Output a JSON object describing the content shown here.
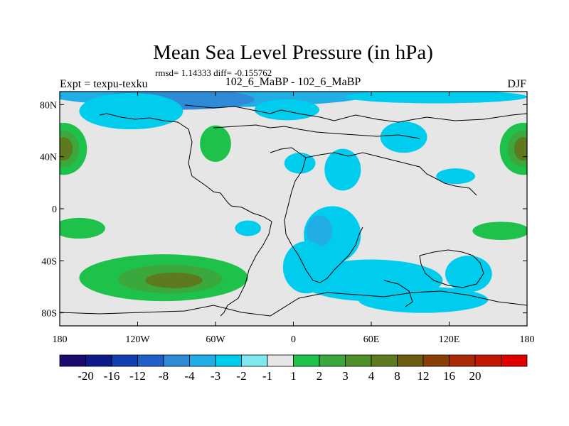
{
  "chart_data": {
    "type": "heatmap",
    "title": "Mean Sea Level Pressure (in hPa)",
    "stats": "rmsd= 1.14333 diff= -0.155762",
    "left_label": "Expt = texpu-texku",
    "center_label": "102_6_MaBP - 102_6_MaBP",
    "right_label": "DJF",
    "x_ticks": [
      {
        "lon": -180,
        "label": "180"
      },
      {
        "lon": -120,
        "label": "120W"
      },
      {
        "lon": -60,
        "label": "60W"
      },
      {
        "lon": 0,
        "label": "0"
      },
      {
        "lon": 60,
        "label": "60E"
      },
      {
        "lon": 120,
        "label": "120E"
      },
      {
        "lon": 180,
        "label": "180"
      }
    ],
    "y_ticks": [
      {
        "lat": 80,
        "label": "80N"
      },
      {
        "lat": 40,
        "label": "40N"
      },
      {
        "lat": 0,
        "label": "0"
      },
      {
        "lat": -40,
        "label": "40S"
      },
      {
        "lat": -80,
        "label": "80S"
      }
    ],
    "xlim": [
      -180,
      180
    ],
    "ylim": [
      -90,
      90
    ],
    "colorbar": {
      "colors": [
        "#1a0a6e",
        "#0d1a8c",
        "#123fb0",
        "#1e5fc8",
        "#2f8ad8",
        "#21aee6",
        "#00ccee",
        "#7fe8ee",
        "#e6e6e6",
        "#1ec24a",
        "#3aa83c",
        "#4f8f2a",
        "#5e7a1e",
        "#6e5a10",
        "#8a3e08",
        "#a82a06",
        "#c41606",
        "#e00000"
      ],
      "labels": [
        "-20",
        "-16",
        "-12",
        "-8",
        "-4",
        "-3",
        "-2",
        "-1",
        "1",
        "2",
        "3",
        "4",
        "8",
        "12",
        "16",
        "20"
      ],
      "background_level": "#e6e6e6"
    },
    "anomaly_regions": [
      {
        "lon": -177,
        "lat": 46,
        "rlon": 18,
        "rlat": 20,
        "color": "#1ec24a"
      },
      {
        "lon": -177,
        "lat": 46,
        "rlon": 12,
        "rlat": 14,
        "color": "#3aa83c"
      },
      {
        "lon": -177,
        "lat": 46,
        "rlon": 7,
        "rlat": 9,
        "color": "#5e7a1e"
      },
      {
        "lon": 177,
        "lat": 46,
        "rlon": 18,
        "rlat": 20,
        "color": "#1ec24a"
      },
      {
        "lon": 177,
        "lat": 46,
        "rlon": 12,
        "rlat": 14,
        "color": "#3aa83c"
      },
      {
        "lon": 177,
        "lat": 46,
        "rlon": 7,
        "rlat": 9,
        "color": "#5e7a1e"
      },
      {
        "lon": -60,
        "lat": 50,
        "rlon": 12,
        "rlat": 14,
        "color": "#1ec24a"
      },
      {
        "lon": -165,
        "lat": -15,
        "rlon": 20,
        "rlat": 8,
        "color": "#1ec24a"
      },
      {
        "lon": 160,
        "lat": -17,
        "rlon": 22,
        "rlat": 7,
        "color": "#1ec24a"
      },
      {
        "lon": -100,
        "lat": -53,
        "rlon": 65,
        "rlat": 18,
        "color": "#1ec24a"
      },
      {
        "lon": -95,
        "lat": -54,
        "rlon": 40,
        "rlat": 11,
        "color": "#3aa83c"
      },
      {
        "lon": -92,
        "lat": -55,
        "rlon": 22,
        "rlat": 6,
        "color": "#5e7a1e"
      },
      {
        "lon": -65,
        "lat": 88,
        "rlon": 125,
        "rlat": 10,
        "color": "#21aee6"
      },
      {
        "lon": -90,
        "lat": 84,
        "rlon": 60,
        "rlat": 8,
        "color": "#2f8ad8"
      },
      {
        "lon": -125,
        "lat": 75,
        "rlon": 40,
        "rlat": 14,
        "color": "#00ccee"
      },
      {
        "lon": -5,
        "lat": 76,
        "rlon": 25,
        "rlat": 8,
        "color": "#00ccee"
      },
      {
        "lon": 110,
        "lat": 86,
        "rlon": 70,
        "rlat": 5,
        "color": "#00ccee"
      },
      {
        "lon": 38,
        "lat": 30,
        "rlon": 14,
        "rlat": 16,
        "color": "#00ccee"
      },
      {
        "lon": 30,
        "lat": -20,
        "rlon": 22,
        "rlat": 22,
        "color": "#00ccee"
      },
      {
        "lon": 20,
        "lat": -17,
        "rlon": 10,
        "rlat": 12,
        "color": "#21aee6"
      },
      {
        "lon": 10,
        "lat": -45,
        "rlon": 18,
        "rlat": 20,
        "color": "#00ccee"
      },
      {
        "lon": 60,
        "lat": -55,
        "rlon": 55,
        "rlat": 16,
        "color": "#00ccee"
      },
      {
        "lon": 100,
        "lat": -70,
        "rlon": 50,
        "rlat": 10,
        "color": "#00ccee"
      },
      {
        "lon": 85,
        "lat": 55,
        "rlon": 18,
        "rlat": 12,
        "color": "#00ccee"
      },
      {
        "lon": 5,
        "lat": 35,
        "rlon": 12,
        "rlat": 8,
        "color": "#00ccee"
      },
      {
        "lon": -35,
        "lat": -15,
        "rlon": 10,
        "rlat": 6,
        "color": "#00ccee"
      },
      {
        "lon": 135,
        "lat": -50,
        "rlon": 18,
        "rlat": 14,
        "color": "#00ccee"
      },
      {
        "lon": 125,
        "lat": 25,
        "rlon": 15,
        "rlat": 6,
        "color": "#00ccee"
      }
    ]
  }
}
